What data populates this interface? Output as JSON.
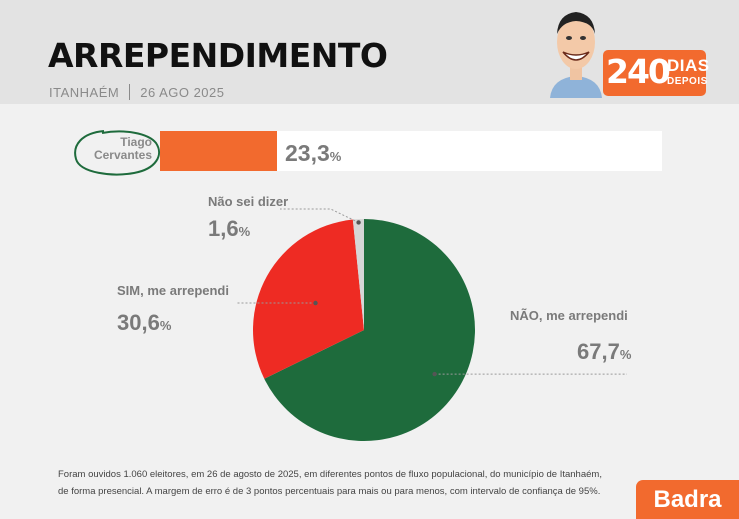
{
  "header": {
    "title": "ARREPENDIMENTO",
    "city": "ITANHAÉM",
    "date": "26 AGO 2025",
    "badge_number": "240",
    "badge_dias": "DIAS",
    "badge_depois": "DEPOIS"
  },
  "bar": {
    "label_line1": "Tiago",
    "label_line2": "Cervantes",
    "value": 23.3,
    "value_text": "23,3",
    "pct_sign": "%"
  },
  "chart_data": {
    "type": "pie",
    "title": "",
    "categories": [
      "NÃO, me arrependi",
      "SIM, me arrependi",
      "Não sei dizer"
    ],
    "values": [
      67.7,
      30.6,
      1.6
    ],
    "value_labels": [
      "67,7",
      "30,6",
      "1,6"
    ],
    "pct_sign": "%",
    "colors": [
      "#1e6b3c",
      "#ee2b23",
      "#d6d6d6"
    ]
  },
  "footer": {
    "line1": "Foram ouvidos 1.060 eleitores, em 26 de agosto de 2025, em diferentes pontos de fluxo populacional, do município de Itanhaém,",
    "line2": "de forma presencial. A margem de erro é de 3 pontos percentuais para mais ou para menos, com intervalo de confiança de 95%."
  },
  "brand": {
    "name": "Badra"
  },
  "colors": {
    "accent": "#f26a2e",
    "green": "#1e6b3c",
    "red": "#ee2b23"
  }
}
